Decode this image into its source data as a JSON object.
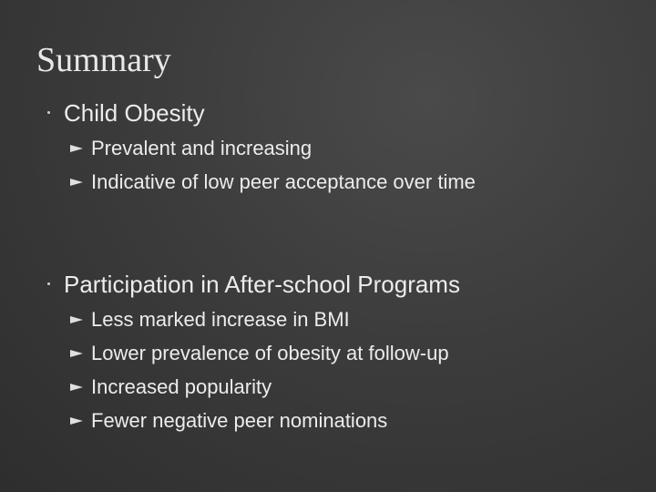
{
  "title": "Summary",
  "items": [
    {
      "text": "Child Obesity",
      "subitems": [
        "Prevalent and increasing",
        "Indicative of low peer acceptance over time"
      ]
    },
    {
      "text": "Participation in After-school Programs",
      "subitems": [
        "Less marked increase in BMI",
        "Lower prevalence of obesity at follow-up",
        "Increased popularity",
        "Fewer negative peer nominations"
      ]
    }
  ]
}
